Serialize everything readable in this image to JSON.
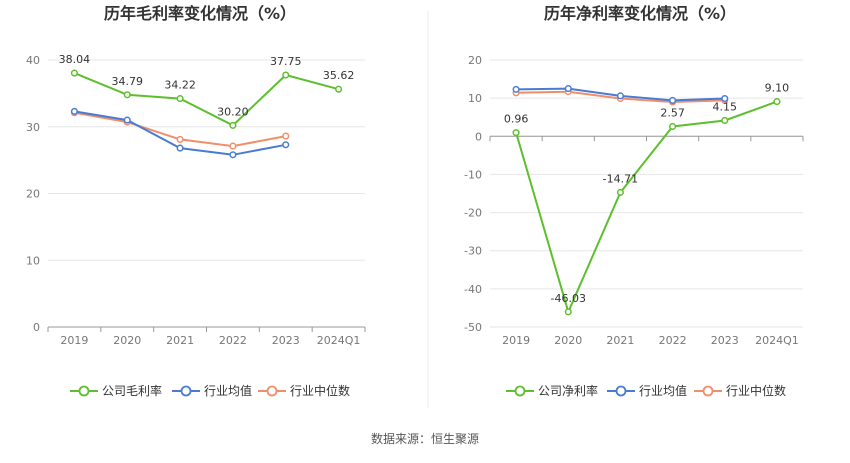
{
  "colors": {
    "company": "#5DBE2E",
    "industry_avg": "#4A7BD4",
    "industry_median": "#F08E6B",
    "grid": "#E6E6E6",
    "axis": "#999999",
    "divider": "#EEEEEE"
  },
  "chart_data": [
    {
      "type": "line",
      "title": "历年毛利率变化情况（%）",
      "categories": [
        "2019",
        "2020",
        "2021",
        "2022",
        "2023",
        "2024Q1"
      ],
      "ylim": [
        0,
        40
      ],
      "yticks": [
        0,
        10,
        20,
        30,
        40
      ],
      "grid": true,
      "legend_position": "bottom",
      "series": [
        {
          "name": "公司毛利率",
          "color_key": "company",
          "labels": true,
          "values": [
            38.04,
            34.79,
            34.22,
            30.2,
            37.75,
            35.62
          ]
        },
        {
          "name": "行业均值",
          "color_key": "industry_avg",
          "labels": false,
          "values": [
            32.3,
            31.0,
            26.8,
            25.8,
            27.3,
            null
          ]
        },
        {
          "name": "行业中位数",
          "color_key": "industry_median",
          "labels": false,
          "values": [
            32.1,
            30.7,
            28.1,
            27.1,
            28.6,
            null
          ]
        }
      ]
    },
    {
      "type": "line",
      "title": "历年净利率变化情况（%）",
      "categories": [
        "2019",
        "2020",
        "2021",
        "2022",
        "2023",
        "2024Q1"
      ],
      "ylim": [
        -50,
        20
      ],
      "yticks": [
        -50,
        -40,
        -30,
        -20,
        -10,
        0,
        10,
        20
      ],
      "grid": true,
      "legend_position": "bottom",
      "series": [
        {
          "name": "公司净利率",
          "color_key": "company",
          "labels": true,
          "values": [
            0.96,
            -46.03,
            -14.71,
            2.57,
            4.15,
            9.1
          ]
        },
        {
          "name": "行业均值",
          "color_key": "industry_avg",
          "labels": false,
          "values": [
            12.3,
            12.5,
            10.6,
            9.4,
            9.9,
            null
          ]
        },
        {
          "name": "行业中位数",
          "color_key": "industry_median",
          "labels": false,
          "values": [
            11.4,
            11.7,
            9.9,
            9.0,
            9.4,
            null
          ]
        }
      ]
    }
  ],
  "footer": {
    "source": "数据来源：恒生聚源"
  }
}
